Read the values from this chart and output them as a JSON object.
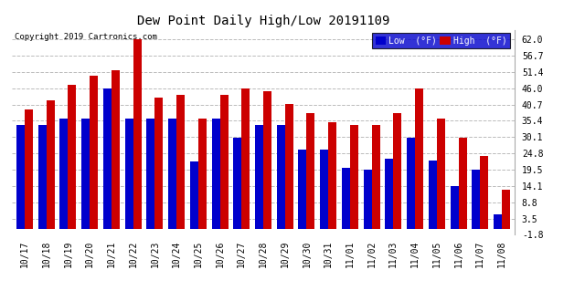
{
  "title": "Dew Point Daily High/Low 20191109",
  "copyright": "Copyright 2019 Cartronics.com",
  "dates": [
    "10/17",
    "10/18",
    "10/19",
    "10/20",
    "10/21",
    "10/22",
    "10/23",
    "10/24",
    "10/25",
    "10/26",
    "10/27",
    "10/28",
    "10/29",
    "10/30",
    "10/31",
    "11/01",
    "11/02",
    "11/03",
    "11/04",
    "11/05",
    "11/06",
    "11/07",
    "11/08"
  ],
  "low_values": [
    34.0,
    34.0,
    36.0,
    36.0,
    46.0,
    36.0,
    36.0,
    36.0,
    22.0,
    36.0,
    30.0,
    34.0,
    34.0,
    26.0,
    26.0,
    20.0,
    19.5,
    23.0,
    30.0,
    22.5,
    14.0,
    19.5,
    5.0
  ],
  "high_values": [
    39.0,
    42.0,
    47.0,
    50.0,
    52.0,
    62.0,
    43.0,
    44.0,
    36.0,
    44.0,
    46.0,
    45.0,
    41.0,
    38.0,
    35.0,
    34.0,
    34.0,
    38.0,
    46.0,
    36.0,
    30.0,
    24.0,
    13.0
  ],
  "low_color": "#0000cc",
  "high_color": "#cc0000",
  "bg_color": "#ffffff",
  "grid_color": "#bbbbbb",
  "yticks": [
    -1.8,
    3.5,
    8.8,
    14.1,
    19.5,
    24.8,
    30.1,
    35.4,
    40.7,
    46.0,
    51.4,
    56.7,
    62.0
  ],
  "ymin": -1.8,
  "ymax": 65.0,
  "bar_width": 0.38
}
